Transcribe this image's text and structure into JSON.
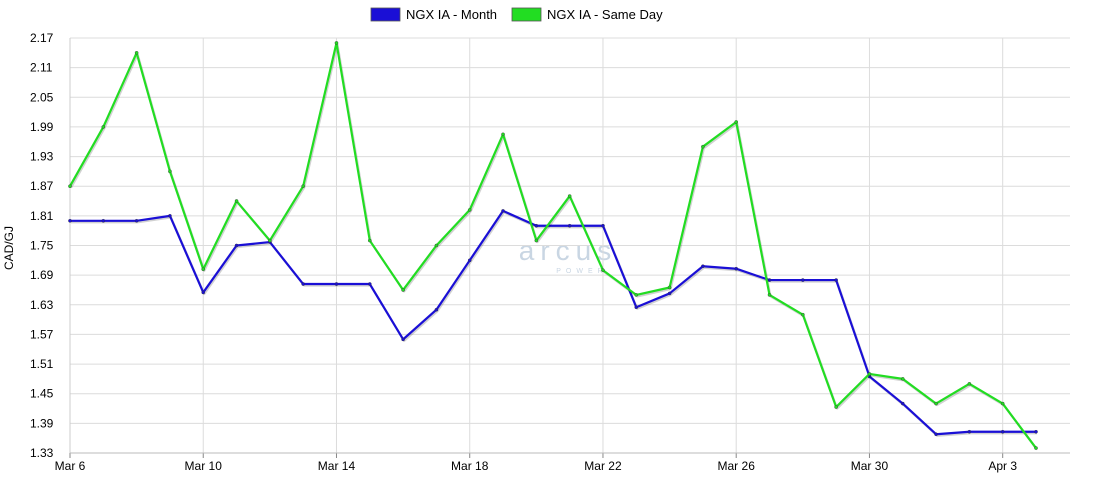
{
  "chart_data": {
    "type": "line",
    "ylabel": "CAD/GJ",
    "ylim": [
      1.33,
      2.17
    ],
    "yticks": [
      "2.17",
      "2.11",
      "2.05",
      "1.99",
      "1.93",
      "1.87",
      "1.81",
      "1.75",
      "1.69",
      "1.63",
      "1.57",
      "1.51",
      "1.45",
      "1.39",
      "1.33"
    ],
    "xlim": [
      "2024-03-06",
      "2024-04-04"
    ],
    "xticks": [
      {
        "date": "2024-03-06",
        "label": "Mar 6"
      },
      {
        "date": "2024-03-10",
        "label": "Mar 10"
      },
      {
        "date": "2024-03-14",
        "label": "Mar 14"
      },
      {
        "date": "2024-03-18",
        "label": "Mar 18"
      },
      {
        "date": "2024-03-22",
        "label": "Mar 22"
      },
      {
        "date": "2024-03-26",
        "label": "Mar 26"
      },
      {
        "date": "2024-03-30",
        "label": "Mar 30"
      },
      {
        "date": "2024-04-03",
        "label": "Apr 3"
      }
    ],
    "grid": true,
    "legend_position": "top-center",
    "x": [
      "2024-03-06",
      "2024-03-07",
      "2024-03-08",
      "2024-03-09",
      "2024-03-10",
      "2024-03-11",
      "2024-03-12",
      "2024-03-13",
      "2024-03-14",
      "2024-03-15",
      "2024-03-16",
      "2024-03-17",
      "2024-03-18",
      "2024-03-19",
      "2024-03-20",
      "2024-03-21",
      "2024-03-22",
      "2024-03-23",
      "2024-03-24",
      "2024-03-25",
      "2024-03-26",
      "2024-03-27",
      "2024-03-28",
      "2024-03-29",
      "2024-03-30",
      "2024-03-31",
      "2024-04-01",
      "2024-04-02",
      "2024-04-03",
      "2024-04-04"
    ],
    "series": [
      {
        "name": "NGX IA - Month",
        "color": "#1a0fd6",
        "values": [
          1.8,
          1.8,
          1.8,
          1.81,
          1.655,
          1.75,
          1.757,
          1.672,
          1.672,
          1.672,
          1.56,
          1.62,
          1.72,
          1.82,
          1.79,
          1.79,
          1.79,
          1.625,
          1.653,
          1.708,
          1.703,
          1.68,
          1.68,
          1.68,
          1.485,
          1.43,
          1.368,
          1.373,
          1.373,
          1.373
        ]
      },
      {
        "name": "NGX IA - Same Day",
        "color": "#22dd22",
        "values": [
          1.87,
          1.99,
          2.14,
          1.9,
          1.702,
          1.84,
          1.76,
          1.87,
          2.16,
          1.76,
          1.66,
          1.75,
          1.822,
          1.975,
          1.76,
          1.85,
          1.7,
          1.65,
          1.665,
          1.95,
          2.0,
          1.65,
          1.61,
          1.423,
          1.49,
          1.48,
          1.43,
          1.47,
          1.43,
          1.34
        ]
      }
    ]
  },
  "watermark": {
    "text": "arcus",
    "subtext": "POWER"
  }
}
